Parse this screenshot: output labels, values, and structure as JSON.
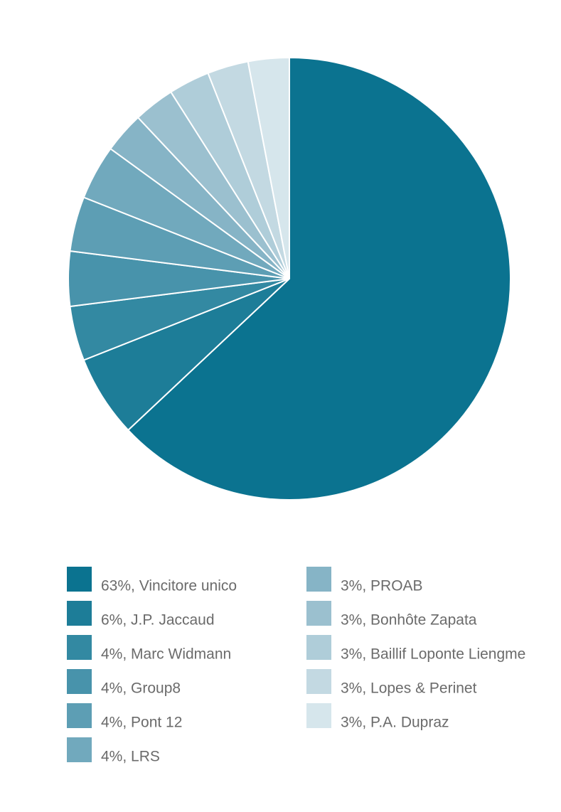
{
  "chart_data": {
    "type": "pie",
    "categories": [
      "63%, Vincitore unico",
      "6%, J.P. Jaccaud",
      "4%, Marc Widmann",
      "4%, Group8",
      "4%, Pont 12",
      "4%, LRS",
      "3%, PROAB",
      "3%, Bonhôte Zapata",
      "3%, Baillif Loponte Liengme",
      "3%, Lopes & Perinet",
      "3%, P.A. Dupraz"
    ],
    "values": [
      63,
      6,
      4,
      4,
      4,
      4,
      3,
      3,
      3,
      3,
      3
    ],
    "colors": [
      "#0b7390",
      "#1d7d98",
      "#3389a2",
      "#4893ab",
      "#5d9eb4",
      "#71a9bd",
      "#86b4c6",
      "#9bc0cf",
      "#afcdd9",
      "#c3d9e2",
      "#d6e6ec"
    ]
  }
}
